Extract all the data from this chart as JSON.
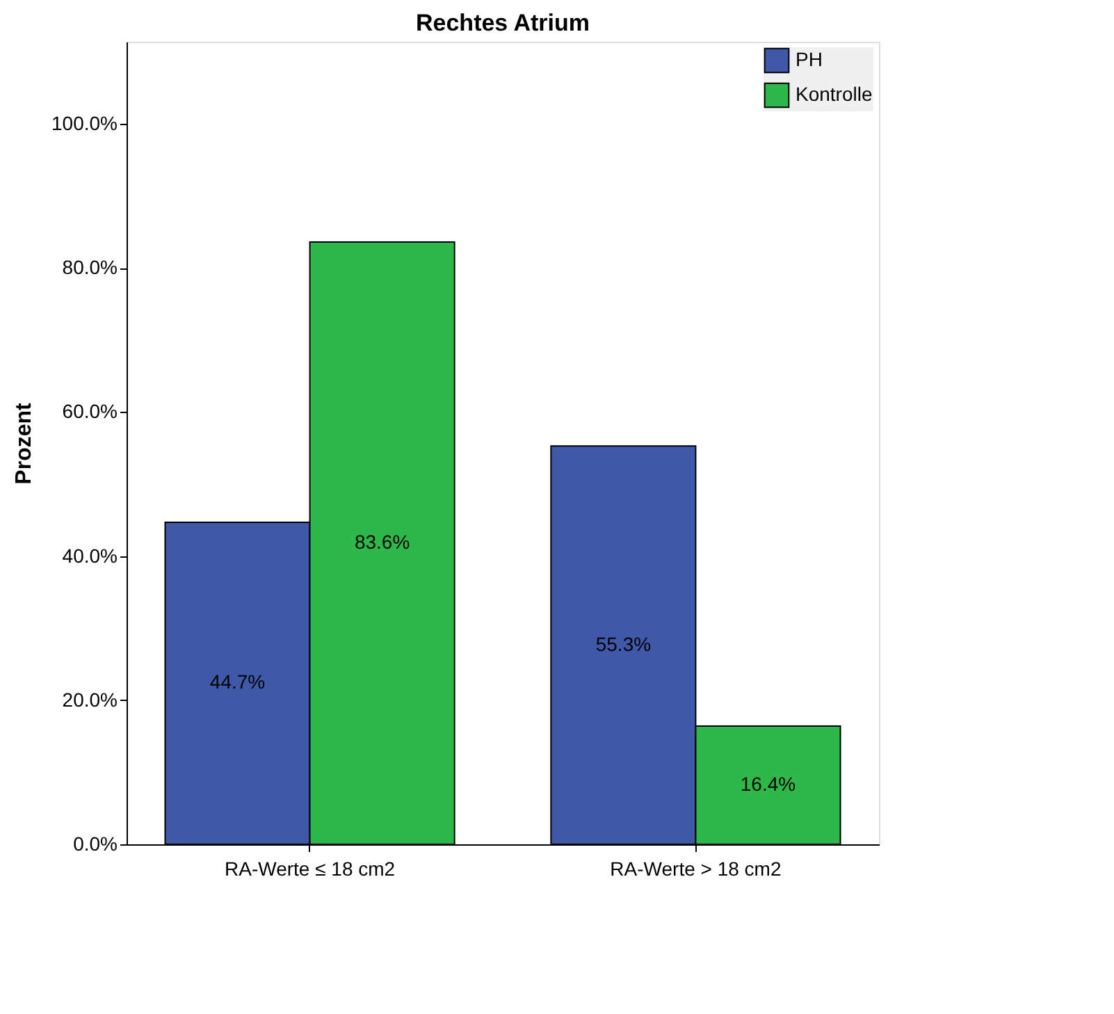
{
  "chart_data": {
    "type": "bar",
    "title": "Rechtes Atrium",
    "ylabel": "Prozent",
    "categories": [
      "RA-Werte ≤ 18 cm2",
      "RA-Werte > 18 cm2"
    ],
    "series": [
      {
        "name": "PH",
        "color": "#3f58a8",
        "values": [
          44.7,
          55.3
        ],
        "value_labels": [
          "44.7%",
          "55.3%"
        ]
      },
      {
        "name": "Kontrolle",
        "color": "#2fb84a",
        "values": [
          83.6,
          16.4
        ],
        "value_labels": [
          "83.6%",
          "16.4%"
        ]
      }
    ],
    "ylim": [
      0,
      111.4
    ],
    "yticks": [
      {
        "value": 0,
        "label": "0.0%"
      },
      {
        "value": 20,
        "label": "20.0%"
      },
      {
        "value": 40,
        "label": "40.0%"
      },
      {
        "value": 60,
        "label": "60.0%"
      },
      {
        "value": 80,
        "label": "80.0%"
      },
      {
        "value": 100,
        "label": "100.0%"
      }
    ],
    "grid": false,
    "legend": "top right"
  }
}
